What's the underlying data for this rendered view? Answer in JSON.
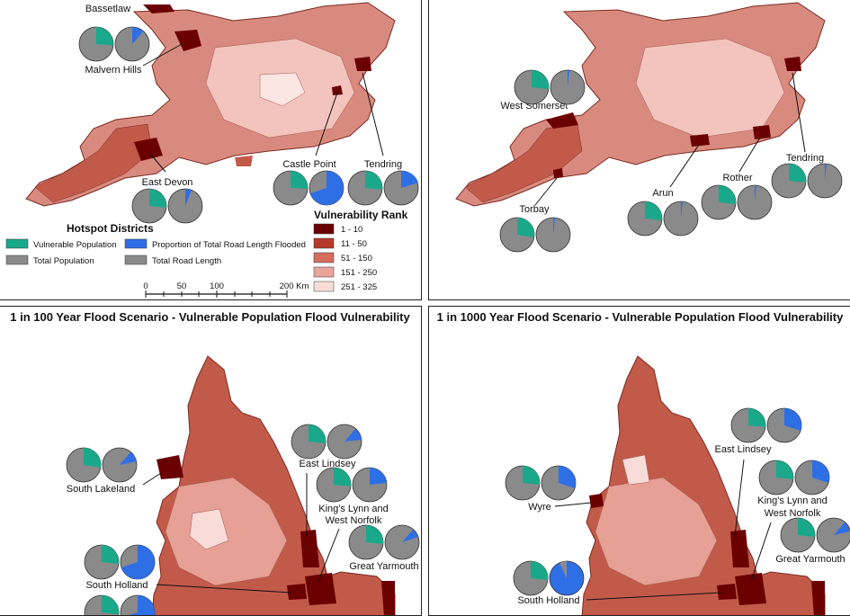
{
  "colors": {
    "vulnerable": "#1aa88a",
    "total": "#8a8a8a",
    "road": "#2f6fe6",
    "rank": [
      "#6b0000",
      "#b53a2a",
      "#d36d5e",
      "#e9a59b",
      "#f7dcd8"
    ]
  },
  "panels": [
    {
      "title": ""
    },
    {
      "title": ""
    },
    {
      "title": "1 in 100 Year Flood Scenario - Vulnerable Population Flood Vulnerability"
    },
    {
      "title": "1 in 1000 Year Flood Scenario - Vulnerable Population Flood Vulnerability"
    }
  ],
  "hotspots": {
    "p1": [
      "Bassetlaw",
      "Malvern Hills",
      "East Devon",
      "Castle Point",
      "Tendring"
    ],
    "p2": [
      "West Somerset",
      "Torbay",
      "Arun",
      "Rother",
      "Tendring"
    ],
    "p3": [
      "South Lakeland",
      "East Lindsey",
      "King's Lynn and",
      "West Norfolk",
      "South Holland",
      "Great Yarmouth"
    ],
    "p4": [
      "Wyre",
      "East Lindsey",
      "King's Lynn and",
      "West Norfolk",
      "South Holland",
      "Great Yarmouth"
    ]
  },
  "legend": {
    "hotspot_title": "Hotspot Districts",
    "vulnerable_population": "Vulnerable Population",
    "total_population": "Total Population",
    "road_flooded": "Proportion of Total Road Length Flooded",
    "total_road": "Total Road Length",
    "rank_title": "Vulnerability Rank",
    "ranks": [
      "1 - 10",
      "11 - 50",
      "51 - 150",
      "151 - 250",
      "251 - 325"
    ],
    "scale_ticks": [
      "0",
      "50",
      "100",
      "200 Km"
    ]
  }
}
